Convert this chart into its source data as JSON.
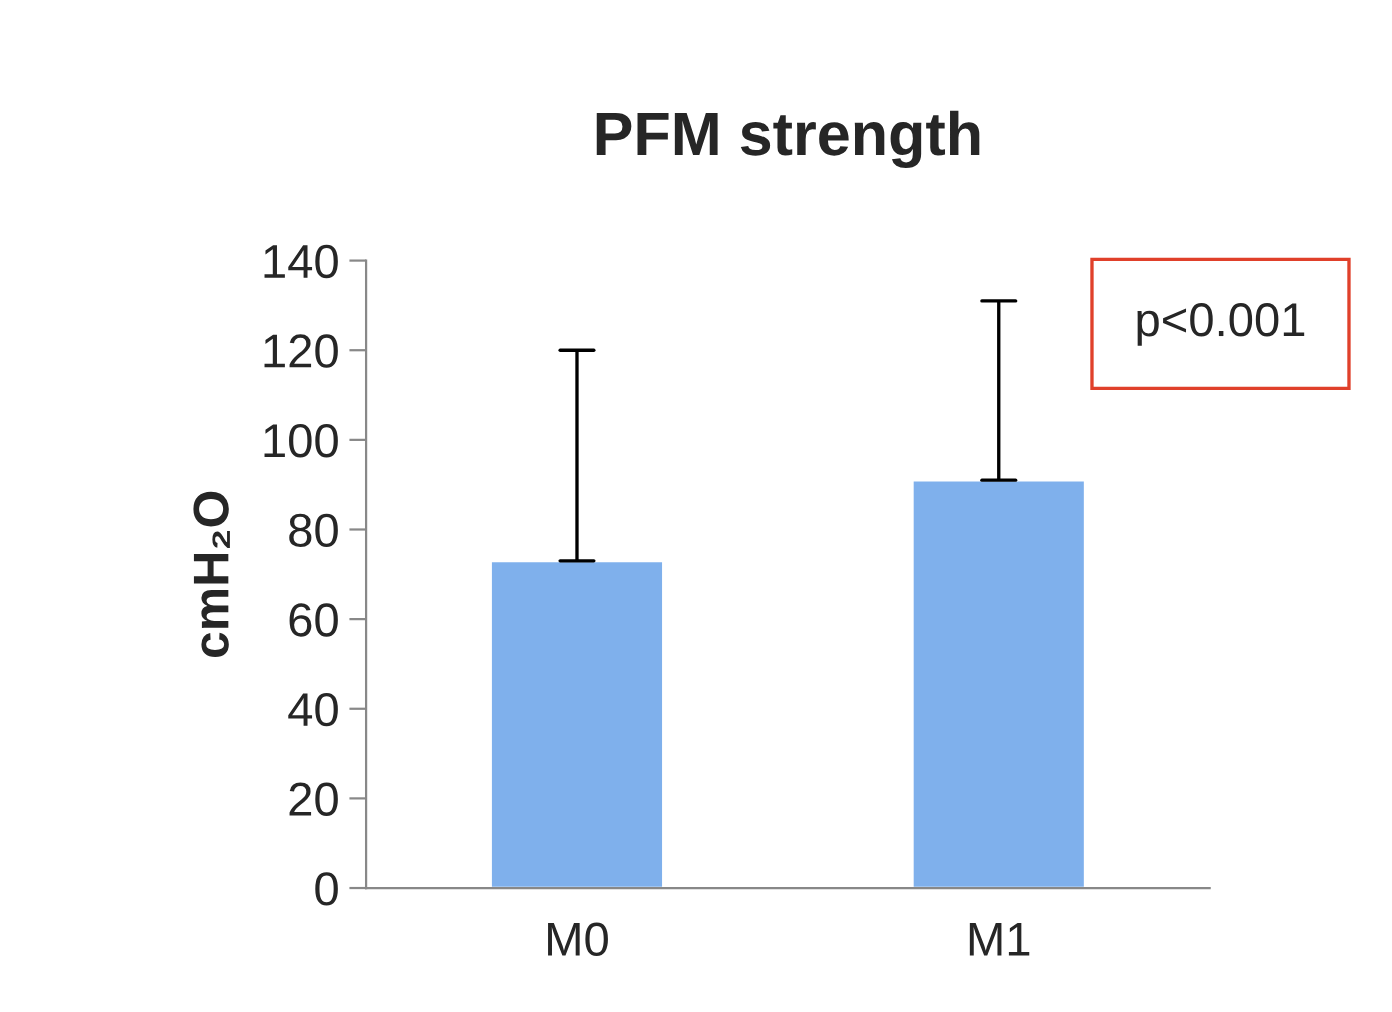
{
  "chart_data": {
    "type": "bar",
    "title": "PFM strength",
    "ylabel": "cmH₂O",
    "categories": [
      "M0",
      "M1"
    ],
    "values": [
      73,
      91
    ],
    "color": "#7fb0ec",
    "errors": [
      [
        73,
        120
      ],
      [
        91,
        131
      ]
    ],
    "ylim": [
      0,
      140
    ],
    "yticks": [
      0,
      20,
      40,
      60,
      80,
      100,
      120,
      140
    ],
    "grid": false,
    "legend": false,
    "annotations": [
      "p<0.001"
    ]
  }
}
